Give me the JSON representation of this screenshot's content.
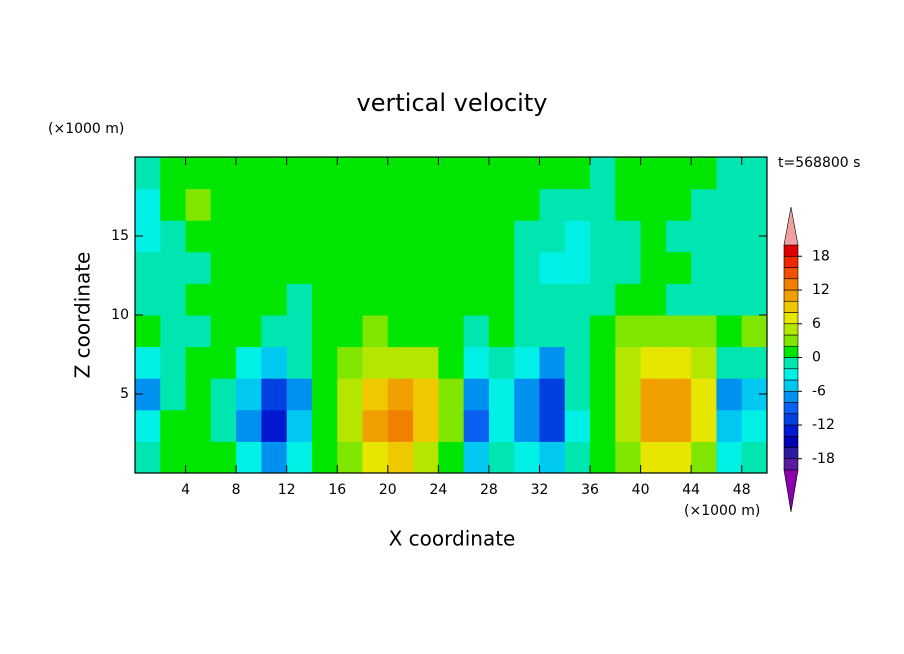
{
  "chart_data": {
    "type": "contour",
    "title": "vertical velocity",
    "x_label": "X coordinate",
    "y_label": "Z coordinate",
    "x_unit": "(×1000 m)",
    "y_unit": "(×1000 m)",
    "time_label": "t=568800 s",
    "xlim": [
      0,
      50
    ],
    "ylim": [
      0,
      20
    ],
    "xticks": [
      4,
      8,
      12,
      16,
      20,
      24,
      28,
      32,
      36,
      40,
      44,
      48
    ],
    "yticks": [
      5,
      10,
      15
    ],
    "x": [
      1,
      3,
      5,
      7,
      9,
      11,
      13,
      15,
      17,
      19,
      21,
      23,
      25,
      27,
      29,
      31,
      33,
      35,
      37,
      39,
      41,
      43,
      45,
      47,
      49
    ],
    "y": [
      1,
      3,
      5,
      7,
      9,
      11,
      13,
      15,
      17,
      19
    ],
    "z": [
      [
        -2,
        1,
        1,
        0,
        -4,
        -8,
        -3,
        1,
        3,
        7,
        8,
        5,
        1,
        -5,
        -2,
        -3,
        -6,
        -1,
        1,
        2,
        6,
        6,
        3,
        -3,
        -2
      ],
      [
        -4,
        1,
        0,
        -1,
        -8,
        -14,
        -6,
        1,
        5,
        11,
        13,
        9,
        2,
        -10,
        -4,
        -8,
        -12,
        -3,
        1,
        4,
        10,
        11,
        6,
        -6,
        -4
      ],
      [
        -8,
        -2,
        1,
        -1,
        -6,
        -12,
        -7,
        1,
        5,
        9,
        10,
        8,
        2,
        -8,
        -3,
        -8,
        -12,
        -2,
        1,
        5,
        11,
        11,
        7,
        -8,
        -5
      ],
      [
        -4,
        -1,
        1,
        0,
        -3,
        -5,
        -2,
        1,
        3,
        5,
        5,
        4,
        1,
        -3,
        -2,
        -4,
        -7,
        -1,
        1,
        4,
        7,
        7,
        4,
        -2,
        -1
      ],
      [
        0,
        -2,
        -1,
        1,
        0,
        -1,
        -2,
        0,
        1,
        2,
        1,
        1,
        0,
        -1,
        1,
        -1,
        -2,
        -1,
        1,
        2,
        3,
        3,
        2,
        0,
        2
      ],
      [
        -2,
        -1,
        0,
        1,
        1,
        0,
        -1,
        0,
        1,
        1,
        0,
        1,
        1,
        0,
        1,
        -1,
        -1,
        -2,
        -1,
        0,
        1,
        -1,
        -2,
        -1,
        -1
      ],
      [
        -2,
        -1,
        -1,
        0,
        1,
        1,
        0,
        1,
        0,
        1,
        1,
        0,
        1,
        1,
        0,
        -2,
        -3,
        -3,
        -2,
        -1,
        1,
        0,
        -2,
        -2,
        -1
      ],
      [
        -3,
        -1,
        0,
        1,
        0,
        1,
        1,
        0,
        1,
        1,
        1,
        1,
        0,
        1,
        1,
        -1,
        -2,
        -3,
        -2,
        -1,
        1,
        -1,
        -2,
        -2,
        -1
      ],
      [
        -3,
        0,
        2,
        1,
        0,
        1,
        1,
        1,
        0,
        1,
        1,
        1,
        1,
        0,
        1,
        0,
        -1,
        -1,
        -2,
        0,
        1,
        0,
        -1,
        -2,
        -2
      ],
      [
        -2,
        0,
        1,
        1,
        0,
        1,
        1,
        1,
        1,
        1,
        1,
        1,
        1,
        1,
        1,
        0,
        1,
        0,
        -1,
        0,
        1,
        1,
        0,
        -1,
        -1
      ]
    ],
    "levels": [
      -20,
      -18,
      -16,
      -14,
      -12,
      -10,
      -8,
      -6,
      -4,
      -2,
      0,
      2,
      4,
      6,
      8,
      10,
      12,
      14,
      16,
      18,
      20
    ],
    "colors": [
      "#8a00aa",
      "#5a1aa0",
      "#2c1aa0",
      "#0000b4",
      "#0018d0",
      "#0040e0",
      "#0a60f0",
      "#0090f0",
      "#00c8f0",
      "#00f0e6",
      "#00e6b0",
      "#00e600",
      "#80e600",
      "#b4e600",
      "#e6e600",
      "#f0c800",
      "#f0a000",
      "#f08000",
      "#f05000",
      "#f02800",
      "#e00000",
      "#f0a0a0"
    ],
    "colorbar_ticks": [
      -18,
      -12,
      -6,
      0,
      6,
      12,
      18
    ]
  }
}
